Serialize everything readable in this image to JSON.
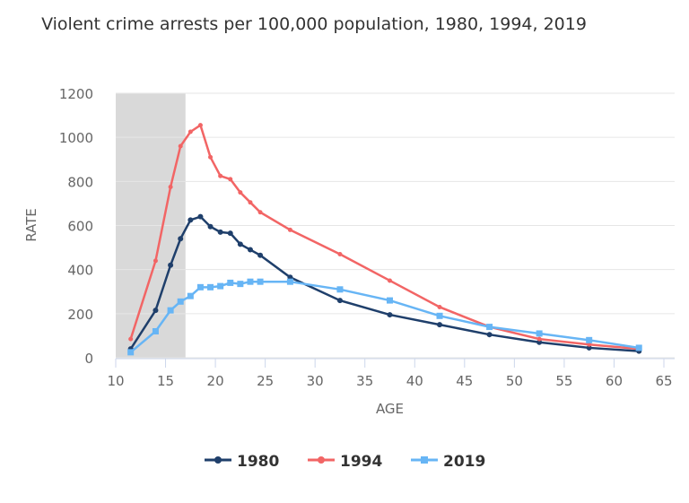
{
  "chart_data": {
    "type": "line",
    "title": "Violent crime arrests per 100,000 population, 1980, 1994, 2019",
    "xlabel": "AGE",
    "ylabel": "RATE",
    "xlim": [
      10,
      65
    ],
    "ylim": [
      0,
      1200
    ],
    "xticks": [
      10,
      15,
      20,
      25,
      30,
      35,
      40,
      45,
      50,
      55,
      60,
      65
    ],
    "yticks": [
      0,
      200,
      400,
      600,
      800,
      1000,
      1200
    ],
    "grid": true,
    "legend": "bottom",
    "shaded_band": [
      10,
      17
    ],
    "x": [
      11.5,
      14,
      15.5,
      16.5,
      17.5,
      18.5,
      19.5,
      20.5,
      21.5,
      22.5,
      23.5,
      24.5,
      27.5,
      32.5,
      37.5,
      42.5,
      47.5,
      52.5,
      57.5,
      62.5
    ],
    "series": [
      {
        "name": "1980",
        "color": "#1f3f6b",
        "values": [
          40,
          215,
          420,
          540,
          625,
          640,
          595,
          570,
          565,
          515,
          490,
          465,
          365,
          260,
          195,
          150,
          105,
          70,
          45,
          30
        ]
      },
      {
        "name": "1994",
        "color": "#f26565",
        "values": [
          85,
          440,
          775,
          960,
          1025,
          1055,
          910,
          825,
          810,
          750,
          705,
          660,
          580,
          470,
          350,
          230,
          140,
          85,
          60,
          40
        ]
      },
      {
        "name": "2019",
        "color": "#67b5f5",
        "values": [
          25,
          120,
          215,
          255,
          280,
          320,
          320,
          325,
          340,
          335,
          345,
          345,
          345,
          310,
          260,
          190,
          140,
          110,
          80,
          45
        ]
      }
    ]
  }
}
